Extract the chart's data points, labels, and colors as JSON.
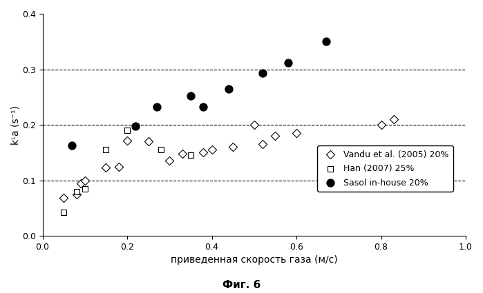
{
  "vandu_x": [
    0.05,
    0.08,
    0.09,
    0.1,
    0.15,
    0.18,
    0.2,
    0.25,
    0.3,
    0.33,
    0.38,
    0.4,
    0.45,
    0.5,
    0.52,
    0.55,
    0.6,
    0.8,
    0.83
  ],
  "vandu_y": [
    0.068,
    0.075,
    0.095,
    0.1,
    0.123,
    0.125,
    0.172,
    0.17,
    0.135,
    0.148,
    0.15,
    0.155,
    0.16,
    0.2,
    0.165,
    0.18,
    0.185,
    0.2,
    0.21
  ],
  "han_x": [
    0.05,
    0.08,
    0.1,
    0.15,
    0.2,
    0.28,
    0.35
  ],
  "han_y": [
    0.042,
    0.08,
    0.085,
    0.155,
    0.19,
    0.155,
    0.145
  ],
  "sasol_x": [
    0.07,
    0.22,
    0.27,
    0.35,
    0.38,
    0.44,
    0.52,
    0.58,
    0.67
  ],
  "sasol_y": [
    0.163,
    0.198,
    0.232,
    0.252,
    0.232,
    0.265,
    0.293,
    0.312,
    0.35
  ],
  "xlabel": "приведенная скорость газа (м/с)",
  "ylabel": "kᴸa (s⁻¹)",
  "caption": "Фиг. 6",
  "legend_vandu": "Vandu et al. (2005) 20%",
  "legend_han": "Han (2007) 25%",
  "legend_sasol": "Sasol in-house 20%",
  "xlim": [
    0,
    1.0
  ],
  "ylim": [
    0,
    0.4
  ],
  "xticks": [
    0,
    0.2,
    0.4,
    0.6,
    0.8,
    1.0
  ],
  "yticks": [
    0,
    0.1,
    0.2,
    0.3,
    0.4
  ],
  "hlines": [
    0.1,
    0.2,
    0.3
  ],
  "bg_color": "#ffffff",
  "marker_size_diamond": 8,
  "marker_size_square": 7,
  "marker_size_circle": 9
}
